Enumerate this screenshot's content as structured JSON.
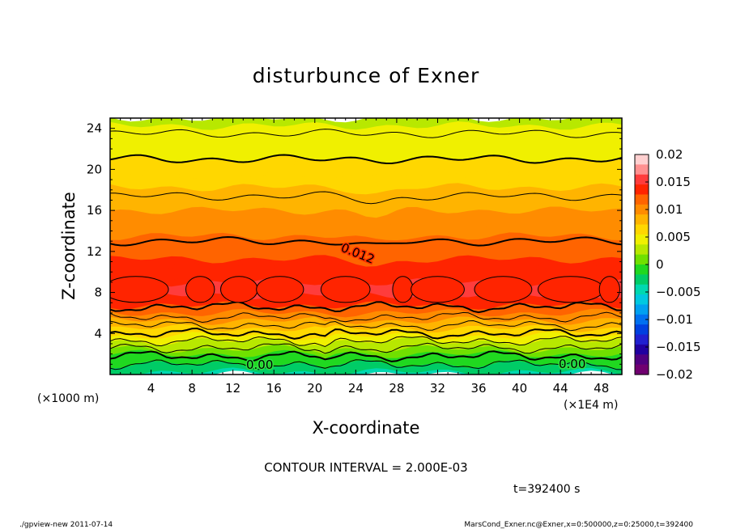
{
  "chart_data": {
    "type": "heatmap",
    "title": "disturbunce of Exner",
    "xlabel": "X-coordinate",
    "ylabel": "Z-coordinate",
    "x_unit_left": "(×1000 m)",
    "x_unit_right": "(×1E4 m)",
    "xlim": [
      0,
      50
    ],
    "ylim": [
      0,
      25
    ],
    "x_ticks": [
      "4",
      "8",
      "12",
      "16",
      "20",
      "24",
      "28",
      "32",
      "36",
      "40",
      "44",
      "48"
    ],
    "y_ticks": [
      "4",
      "8",
      "12",
      "16",
      "20",
      "24"
    ],
    "colorbar": {
      "range": [
        -0.02,
        0.02
      ],
      "tick_labels": [
        "0.02",
        "0.015",
        "0.01",
        "0.005",
        "0",
        "−0.005",
        "−0.01",
        "−0.015",
        "−0.02"
      ],
      "colors": [
        "#ffd0d0",
        "#ff9090",
        "#ff3c3c",
        "#ff2400",
        "#ff6400",
        "#ff8c00",
        "#ffb400",
        "#ffd700",
        "#f0f000",
        "#b8e800",
        "#70e000",
        "#20d820",
        "#00cc66",
        "#00d8b0",
        "#00c8e0",
        "#00a0f0",
        "#0070f0",
        "#0040e0",
        "#2020d0",
        "#2000a0",
        "#500080",
        "#700070"
      ]
    },
    "contour_labels": [
      "0.012",
      "0.00",
      "0.00"
    ],
    "profile": [
      {
        "z": 0,
        "value": -0.004
      },
      {
        "z": 2,
        "value": 0.0
      },
      {
        "z": 4,
        "value": 0.006
      },
      {
        "z": 6,
        "value": 0.011
      },
      {
        "z": 8,
        "value": 0.015
      },
      {
        "z": 10,
        "value": 0.014
      },
      {
        "z": 12,
        "value": 0.012
      },
      {
        "z": 16,
        "value": 0.009
      },
      {
        "z": 20,
        "value": 0.006
      },
      {
        "z": 24,
        "value": 0.004
      },
      {
        "z": 25,
        "value": 0.003
      }
    ],
    "contour_interval_text": "CONTOUR INTERVAL = 2.000E-03",
    "time_text": "t=392400 s"
  },
  "footer": {
    "left": "./gpview-new   2011-07-14",
    "right": "MarsCond_Exner.nc@Exner,x=0:500000,z=0:25000,t=392400"
  }
}
